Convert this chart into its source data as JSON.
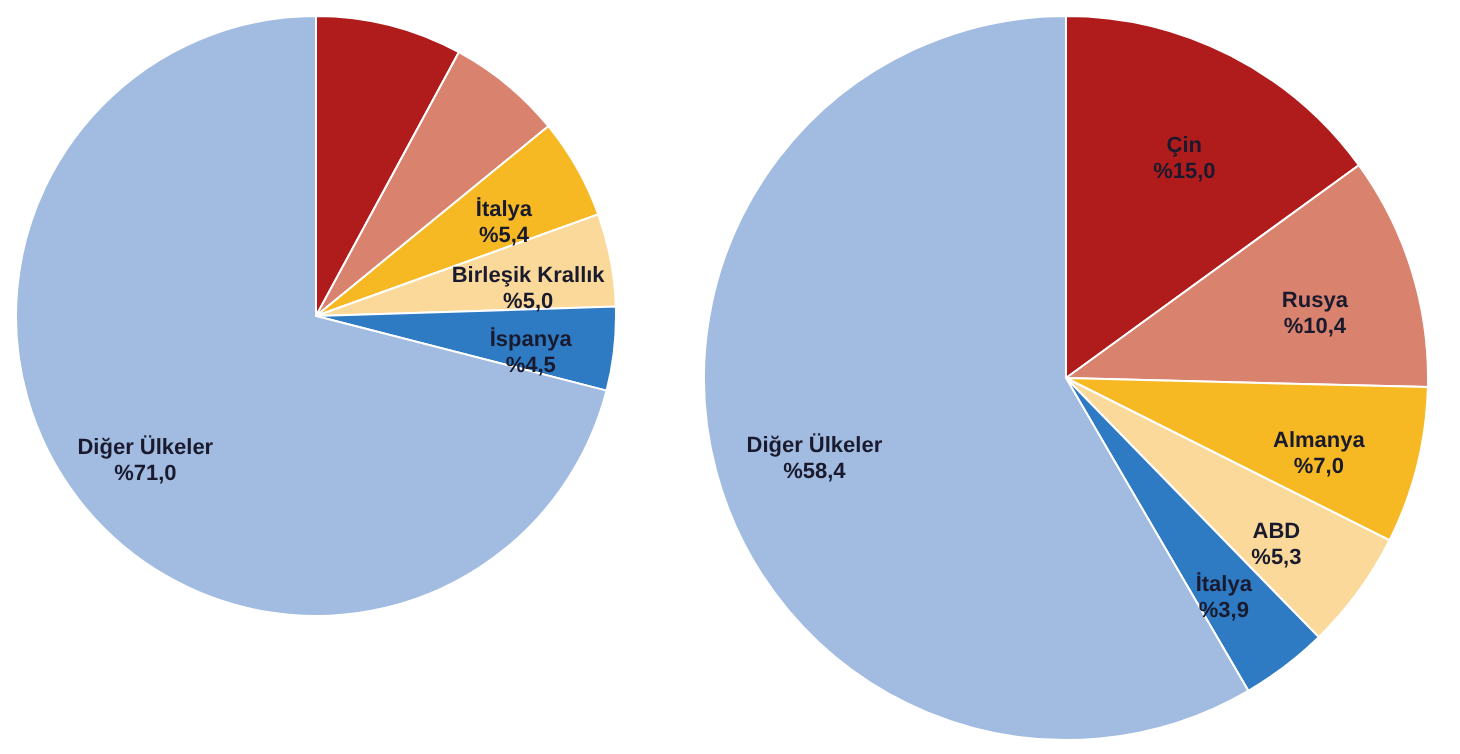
{
  "chart_data": [
    {
      "type": "pie",
      "categories": [
        null,
        null,
        "İtalya",
        "Birleşik Krallık",
        "İspanya",
        "Diğer Ülkeler"
      ],
      "values": [
        7.9,
        6.2,
        5.4,
        5.0,
        4.5,
        71.0
      ],
      "colors": [
        "#b01c1c",
        "#d9826e",
        "#f6b923",
        "#fbd99a",
        "#2e7bc4",
        "#a2bbe0"
      ],
      "value_labels": [
        null,
        null,
        "%5,4",
        "%5,0",
        "%4,5",
        "%71,0"
      ]
    },
    {
      "type": "pie",
      "categories": [
        "Çin",
        "Rusya",
        "Almanya",
        "ABD",
        "İtalya",
        "Diğer Ülkeler"
      ],
      "values": [
        15.0,
        10.4,
        7.0,
        5.3,
        3.9,
        58.4
      ],
      "colors": [
        "#b01c1c",
        "#d9826e",
        "#f6b923",
        "#fbd99a",
        "#2e7bc4",
        "#a2bbe0"
      ],
      "value_labels": [
        "%15,0",
        "%10,4",
        "%7,0",
        "%5,3",
        "%3,9",
        "%58,4"
      ]
    }
  ]
}
